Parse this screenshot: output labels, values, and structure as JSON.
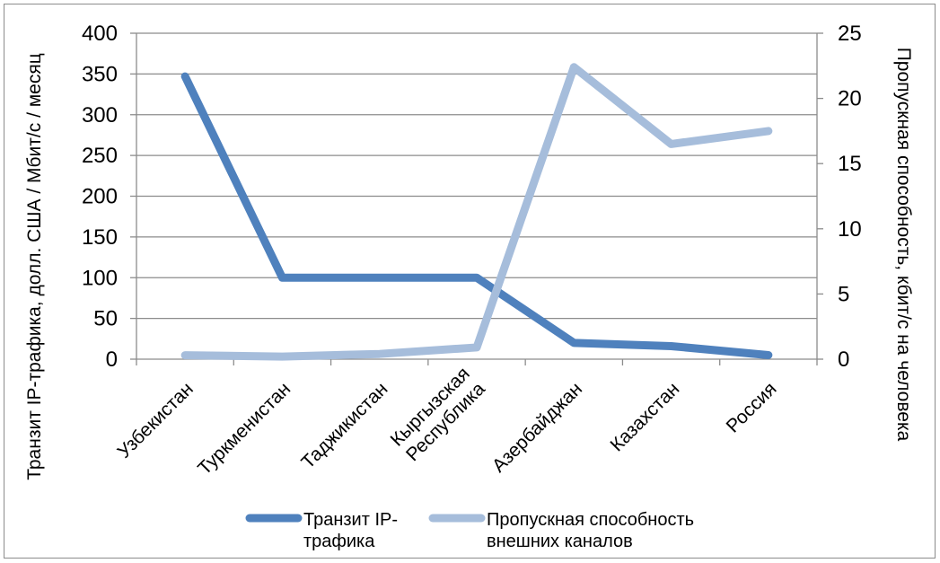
{
  "chart_data": {
    "type": "line",
    "categories": [
      "Узбекистан",
      "Туркменистан",
      "Таджикистан",
      "Кыргызская Республика",
      "Азербайджан",
      "Казахстан",
      "Россия"
    ],
    "category_lines": [
      [
        "Узбекистан"
      ],
      [
        "Туркменистан"
      ],
      [
        "Таджикистан"
      ],
      [
        "Кыргызская",
        "Республика"
      ],
      [
        "Азербайджан"
      ],
      [
        "Казахстан"
      ],
      [
        "Россия"
      ]
    ],
    "series": [
      {
        "name": "Транзит IP-трафика",
        "legend_lines": [
          "Транзит IP-",
          "трафика"
        ],
        "axis": "left",
        "color": "#4f81bd",
        "values": [
          347,
          100,
          100,
          100,
          20,
          16,
          5
        ]
      },
      {
        "name": "Пропускная способность внешних каналов",
        "legend_lines": [
          "Пропускная способность",
          "внешних каналов"
        ],
        "axis": "right",
        "color": "#a6bddb",
        "values": [
          0.3,
          0.2,
          0.4,
          0.9,
          22.4,
          16.5,
          17.5
        ]
      }
    ],
    "y_left": {
      "label": "Транзит IP-трафика, долл. США / Мбит/с / месяц",
      "ylim": [
        0,
        400
      ],
      "ticks": [
        "0",
        "50",
        "100",
        "150",
        "200",
        "250",
        "300",
        "350",
        "400"
      ]
    },
    "y_right": {
      "label": "Пропускная способность, кбит/с на человека",
      "ylim": [
        0,
        25
      ],
      "ticks": [
        "0",
        "5",
        "10",
        "15",
        "20",
        "25"
      ]
    },
    "grid": "horizontal",
    "legend_position": "bottom"
  }
}
